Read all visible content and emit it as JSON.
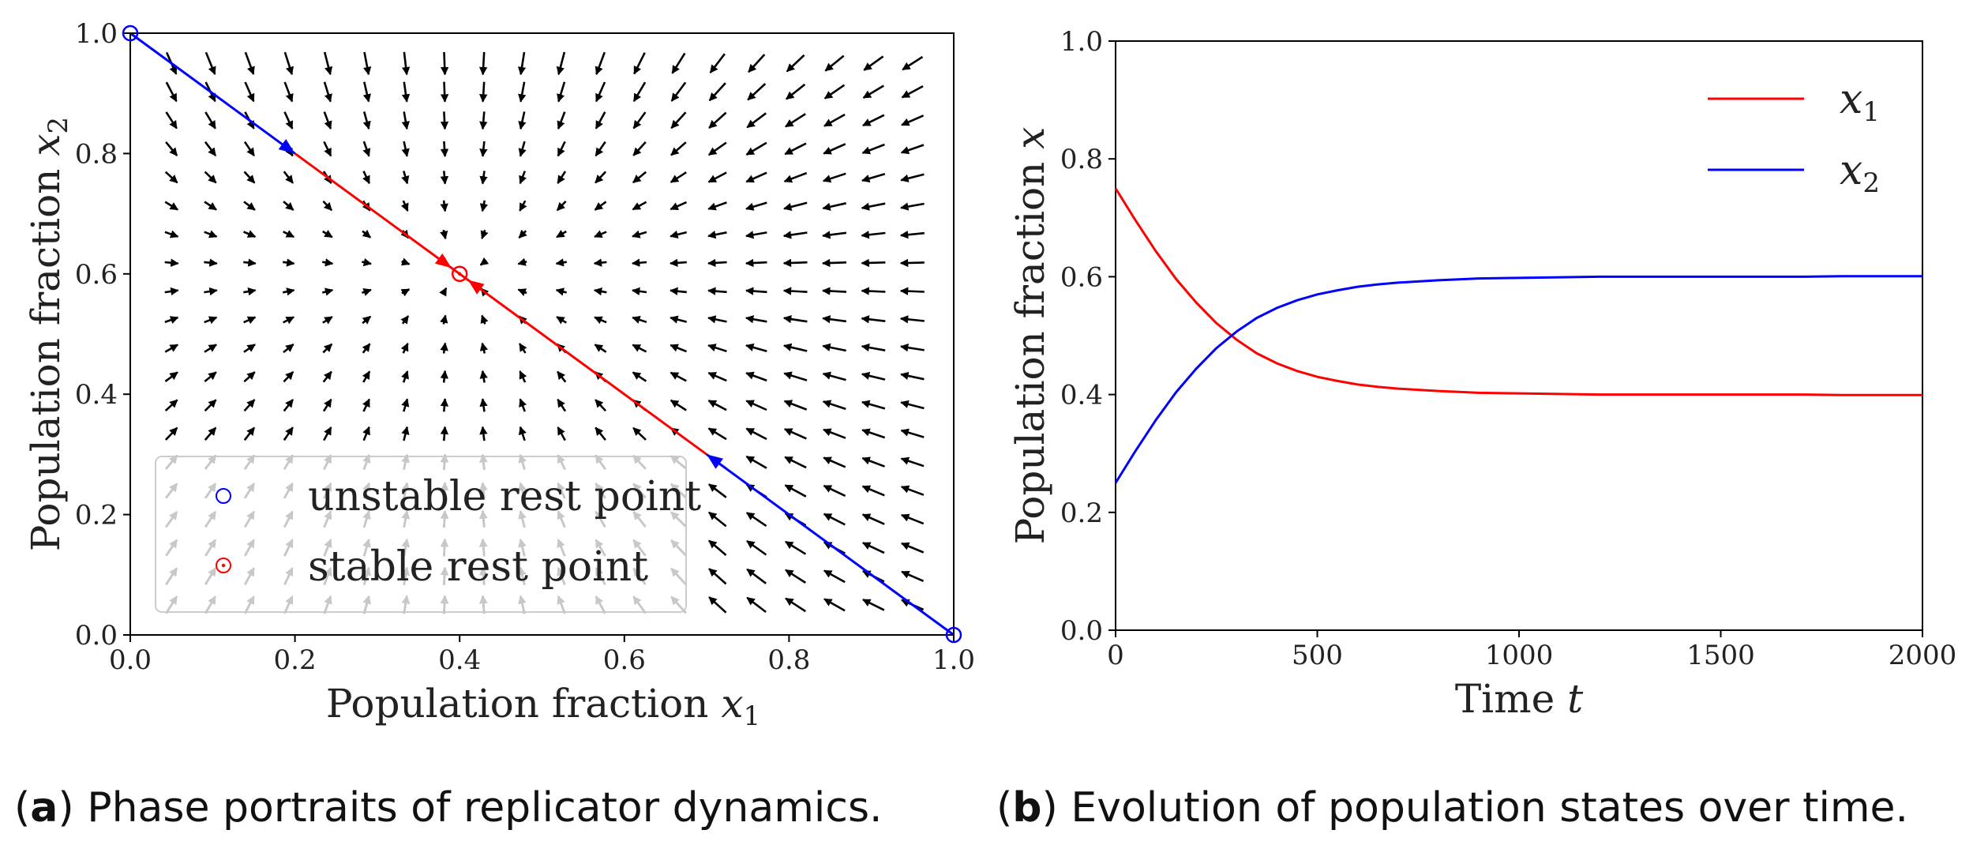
{
  "chart_data": [
    {
      "type": "phase_portrait",
      "panel": "a",
      "xlabel": "Population fraction",
      "xlabel_var": "x",
      "xlabel_sub": "1",
      "ylabel": "Population fraction",
      "ylabel_var": "x",
      "ylabel_sub": "2",
      "xlim": [
        0,
        1
      ],
      "ylim": [
        0,
        1
      ],
      "xticks": [
        "0.0",
        "0.2",
        "0.4",
        "0.6",
        "0.8",
        "1.0"
      ],
      "yticks": [
        "0.0",
        "0.2",
        "0.4",
        "0.6",
        "0.8",
        "1.0"
      ],
      "field_grid": 20,
      "stable_point": [
        0.4,
        0.6
      ],
      "unstable_points": [
        [
          0,
          1
        ],
        [
          1,
          0
        ]
      ],
      "trajectories": [
        {
          "segments": [
            {
              "from": [
                0,
                1
              ],
              "to": [
                0.2,
                0.8
              ],
              "color": "#0000ff"
            },
            {
              "from": [
                0.2,
                0.8
              ],
              "to": [
                0.4,
                0.6
              ],
              "color": "#ff0000"
            }
          ],
          "arrows": [
            [
              0.2,
              0.8
            ],
            [
              0.39,
              0.61
            ]
          ]
        },
        {
          "segments": [
            {
              "from": [
                1,
                0
              ],
              "to": [
                0.7,
                0.3
              ],
              "color": "#0000ff"
            },
            {
              "from": [
                0.7,
                0.3
              ],
              "to": [
                0.4,
                0.6
              ],
              "color": "#ff0000"
            }
          ],
          "arrows": [
            [
              0.7,
              0.3
            ],
            [
              0.41,
              0.59
            ]
          ]
        }
      ],
      "legend": {
        "location": "lower-left",
        "entries": [
          {
            "label": "unstable rest point",
            "color": "#0000ff",
            "marker": "circle-open"
          },
          {
            "label": "stable rest point",
            "color": "#ff0000",
            "marker": "circle-dot"
          }
        ]
      },
      "caption": {
        "tag": "(a)",
        "text": " Phase portraits of replicator dynamics."
      }
    },
    {
      "type": "line",
      "panel": "b",
      "xlabel": "Time",
      "xlabel_var": "t",
      "ylabel": "Population fraction",
      "ylabel_var": "x",
      "xlim": [
        0,
        2000
      ],
      "ylim": [
        0,
        1
      ],
      "xticks": [
        "0",
        "500",
        "1000",
        "1500",
        "2000"
      ],
      "yticks": [
        "0.0",
        "0.2",
        "0.4",
        "0.6",
        "0.8",
        "1.0"
      ],
      "x": [
        0,
        50,
        100,
        150,
        200,
        250,
        300,
        350,
        400,
        450,
        500,
        550,
        600,
        650,
        700,
        750,
        800,
        900,
        1000,
        1100,
        1200,
        1300,
        1400,
        1500,
        1600,
        1700,
        1800,
        1900,
        2000
      ],
      "series": [
        {
          "name": "x",
          "sub": "1",
          "color": "#ff0000",
          "values": [
            0.75,
            0.695,
            0.643,
            0.596,
            0.556,
            0.521,
            0.493,
            0.47,
            0.453,
            0.44,
            0.43,
            0.423,
            0.417,
            0.413,
            0.41,
            0.408,
            0.406,
            0.403,
            0.402,
            0.401,
            0.4,
            0.4,
            0.4,
            0.4,
            0.4,
            0.4,
            0.399,
            0.399,
            0.399
          ]
        },
        {
          "name": "x",
          "sub": "2",
          "color": "#0000ff",
          "values": [
            0.25,
            0.305,
            0.357,
            0.404,
            0.444,
            0.479,
            0.507,
            0.53,
            0.547,
            0.56,
            0.57,
            0.577,
            0.583,
            0.587,
            0.59,
            0.592,
            0.594,
            0.597,
            0.598,
            0.599,
            0.6,
            0.6,
            0.6,
            0.6,
            0.6,
            0.6,
            0.601,
            0.601,
            0.601
          ]
        }
      ],
      "legend": {
        "location": "top-right"
      },
      "caption": {
        "tag": "(b)",
        "text": " Evolution of population states over time."
      }
    }
  ]
}
